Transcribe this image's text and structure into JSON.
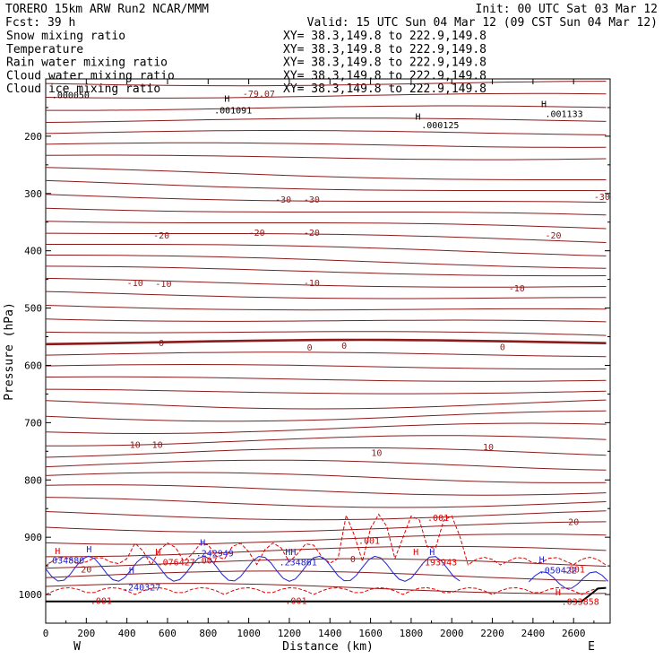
{
  "header": {
    "model": "TORERO  15km ARW   Run2    NCAR/MMM",
    "init": "Init: 00 UTC Sat 03 Mar 12",
    "fcst": "Fcst:    39 h",
    "valid": "Valid: 15 UTC Sun 04 Mar 12 (09 CST Sun 04 Mar 12)"
  },
  "legend": [
    {
      "label": "Snow mixing ratio",
      "xy": "XY=  38.3,149.8 to 222.9,149.8",
      "color": "#000000"
    },
    {
      "label": "Temperature",
      "xy": "XY=  38.3,149.8 to 222.9,149.8",
      "color": "#8b1a1a"
    },
    {
      "label": "Rain water mixing ratio",
      "xy": "XY=  38.3,149.8 to 222.9,149.8",
      "color": "#e00000"
    },
    {
      "label": "Cloud water mixing ratio",
      "xy": "XY=  38.3,149.8 to 222.9,149.8",
      "color": "#2222cc"
    },
    {
      "label": "Cloud ice mixing ratio",
      "xy": "XY=  38.3,149.8 to 222.9,149.8",
      "color": "#000000"
    }
  ],
  "colors": {
    "temperature": "#8b1a1a",
    "rain": "#e00000",
    "cloudwater": "#2222cc",
    "axis": "#000000"
  },
  "chart_data": {
    "type": "line",
    "xlabel": "Distance (km)",
    "ylabel": "Pressure (hPa)",
    "xlim": [
      0,
      2780
    ],
    "ylim": [
      1050,
      100
    ],
    "x_ticks": [
      0,
      200,
      400,
      600,
      800,
      1000,
      1200,
      1400,
      1600,
      1800,
      2000,
      2200,
      2400,
      2600
    ],
    "y_ticks": [
      200,
      300,
      400,
      500,
      600,
      700,
      800,
      900,
      1000
    ],
    "x_end_labels": {
      "left": "W",
      "right": "E"
    },
    "temperature_isotherms": [
      {
        "level": "-30",
        "labels": [
          {
            "x": 1170,
            "p": 310
          },
          {
            "x": 1310,
            "p": 310
          },
          {
            "x": 2740,
            "p": 305
          }
        ]
      },
      {
        "level": "-20",
        "labels": [
          {
            "x": 570,
            "p": 372
          },
          {
            "x": 1040,
            "p": 368
          },
          {
            "x": 1310,
            "p": 368
          },
          {
            "x": 2500,
            "p": 372
          }
        ]
      },
      {
        "level": "-10",
        "labels": [
          {
            "x": 440,
            "p": 455
          },
          {
            "x": 580,
            "p": 457
          },
          {
            "x": 1310,
            "p": 455
          },
          {
            "x": 2320,
            "p": 465
          }
        ]
      },
      {
        "level": "0",
        "labels": [
          {
            "x": 570,
            "p": 560
          },
          {
            "x": 1300,
            "p": 568
          },
          {
            "x": 1470,
            "p": 565
          },
          {
            "x": 2250,
            "p": 567
          }
        ]
      },
      {
        "level": "10",
        "labels": [
          {
            "x": 440,
            "p": 738
          },
          {
            "x": 550,
            "p": 738
          },
          {
            "x": 1630,
            "p": 752
          },
          {
            "x": 2180,
            "p": 742
          }
        ]
      },
      {
        "level": "20",
        "labels": [
          {
            "x": 200,
            "p": 955
          },
          {
            "x": 2600,
            "p": 872
          }
        ]
      }
    ],
    "field_labels": [
      {
        "text": "-79.07",
        "x": 970,
        "p": 125,
        "color": "#8b1a1a"
      },
      {
        "text": ".000050",
        "x": 30,
        "p": 127,
        "color": "#000000"
      },
      {
        "text": ".001091",
        "x": 830,
        "p": 154,
        "color": "#000000"
      },
      {
        "text": ".000125",
        "x": 1850,
        "p": 180,
        "color": "#000000"
      },
      {
        "text": ".001133",
        "x": 2460,
        "p": 160,
        "color": "#000000"
      },
      {
        "text": ".001",
        "x": 1880,
        "p": 865,
        "color": "#e00000"
      },
      {
        "text": ".001",
        "x": 1540,
        "p": 905,
        "color": "#e00000"
      },
      {
        "text": ".001",
        "x": 2550,
        "p": 955,
        "color": "#e00000"
      },
      {
        "text": ".001",
        "x": 1180,
        "p": 1010,
        "color": "#e00000"
      },
      {
        "text": ".001",
        "x": 220,
        "p": 1010,
        "color": "#e00000"
      },
      {
        "text": ".076427",
        "x": 550,
        "p": 943,
        "color": "#e00000"
      },
      {
        "text": ".242949",
        "x": 740,
        "p": 927,
        "color": "#2222cc"
      },
      {
        "text": ".240327",
        "x": 380,
        "p": 987,
        "color": "#2222cc"
      },
      {
        "text": ".234861",
        "x": 1150,
        "p": 943,
        "color": "#2222cc"
      },
      {
        "text": ".193943",
        "x": 1840,
        "p": 943,
        "color": "#e00000"
      },
      {
        "text": ".050422",
        "x": 2430,
        "p": 957,
        "color": "#2222cc"
      },
      {
        "text": ".033858",
        "x": 2540,
        "p": 1012,
        "color": "#e00000"
      },
      {
        "text": ".034880",
        "x": 5,
        "p": 940,
        "color": "#2222cc"
      },
      {
        "text": ".007",
        "x": 740,
        "p": 940,
        "color": "#e00000"
      },
      {
        "text": "0",
        "x": 1500,
        "p": 937,
        "color": "#8b1a1a"
      }
    ],
    "extrema_markers": [
      {
        "text": "H",
        "x": 880,
        "p": 134,
        "color": "#000000"
      },
      {
        "text": "H",
        "x": 1820,
        "p": 165,
        "color": "#000000"
      },
      {
        "text": "H",
        "x": 2440,
        "p": 143,
        "color": "#000000"
      },
      {
        "text": "H",
        "x": 45,
        "p": 923,
        "color": "#e00000"
      },
      {
        "text": "H",
        "x": 200,
        "p": 920,
        "color": "#2222cc"
      },
      {
        "text": "H",
        "x": 760,
        "p": 908,
        "color": "#2222cc"
      },
      {
        "text": "H",
        "x": 540,
        "p": 925,
        "color": "#e00000"
      },
      {
        "text": "H",
        "x": 410,
        "p": 957,
        "color": "#2222cc"
      },
      {
        "text": "HH",
        "x": 1180,
        "p": 925,
        "color": "#2222cc"
      },
      {
        "text": "H",
        "x": 1810,
        "p": 925,
        "color": "#e00000"
      },
      {
        "text": "H",
        "x": 1890,
        "p": 925,
        "color": "#2222cc"
      },
      {
        "text": "H",
        "x": 2430,
        "p": 938,
        "color": "#2222cc"
      },
      {
        "text": "H",
        "x": 2510,
        "p": 995,
        "color": "#e00000"
      }
    ]
  }
}
